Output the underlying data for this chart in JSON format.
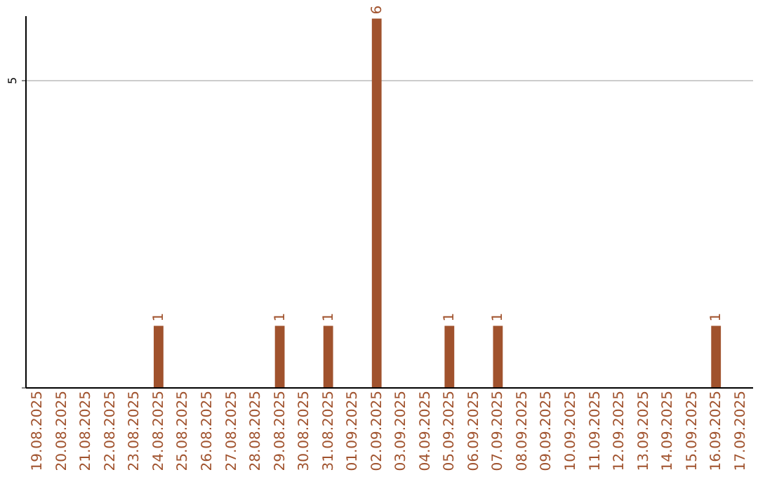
{
  "chart_data": {
    "type": "bar",
    "categories": [
      "19.08.2025",
      "20.08.2025",
      "21.08.2025",
      "22.08.2025",
      "23.08.2025",
      "24.08.2025",
      "25.08.2025",
      "26.08.2025",
      "27.08.2025",
      "28.08.2025",
      "29.08.2025",
      "30.08.2025",
      "31.08.2025",
      "01.09.2025",
      "02.09.2025",
      "03.09.2025",
      "04.09.2025",
      "05.09.2025",
      "06.09.2025",
      "07.09.2025",
      "08.09.2025",
      "09.09.2025",
      "10.09.2025",
      "11.09.2025",
      "12.09.2025",
      "13.09.2025",
      "14.09.2025",
      "15.09.2025",
      "16.09.2025",
      "17.09.2025"
    ],
    "values": [
      0,
      0,
      0,
      0,
      0,
      1,
      0,
      0,
      0,
      0,
      1,
      0,
      1,
      0,
      6,
      0,
      0,
      1,
      0,
      1,
      0,
      0,
      0,
      0,
      0,
      0,
      0,
      0,
      1,
      0
    ],
    "color": "#a0522d",
    "ylim": [
      0,
      6.05
    ],
    "yticks": [
      {
        "value": 0,
        "label": null
      },
      5
    ],
    "grid": "y",
    "value_labels": [
      null,
      null,
      null,
      null,
      null,
      "1",
      null,
      null,
      null,
      null,
      "1",
      null,
      "1",
      null,
      "6",
      null,
      null,
      "1",
      null,
      "1",
      null,
      null,
      null,
      null,
      null,
      null,
      null,
      null,
      "1",
      null
    ]
  }
}
